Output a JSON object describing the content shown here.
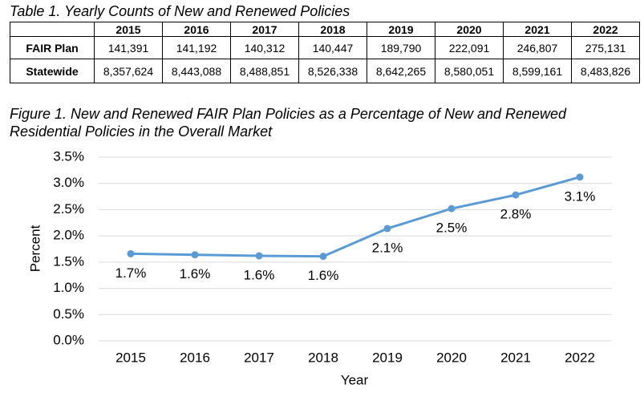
{
  "table": {
    "title": "Table 1. Yearly Counts of New and Renewed Policies",
    "columns": [
      "2015",
      "2016",
      "2017",
      "2018",
      "2019",
      "2020",
      "2021",
      "2022"
    ],
    "rows": [
      [
        "FAIR Plan",
        "141,391",
        "141,192",
        "140,312",
        "140,447",
        "189,790",
        "222,091",
        "246,807",
        "275,131"
      ],
      [
        "Statewide",
        "8,357,624",
        "8,443,088",
        "8,488,851",
        "8,526,338",
        "8,642,265",
        "8,580,051",
        "8,599,161",
        "8,483,826"
      ]
    ]
  },
  "chart_data": {
    "type": "line",
    "title": "Figure 1. New and Renewed FAIR Plan Policies as a Percentage of New and Renewed Residential Policies in the Overall Market",
    "x_label": "Year",
    "y_label": "Percent",
    "categories": [
      "2015",
      "2016",
      "2017",
      "2018",
      "2019",
      "2020",
      "2021",
      "2022"
    ],
    "values": [
      1.66,
      1.64,
      1.62,
      1.61,
      2.14,
      2.52,
      2.78,
      3.12
    ],
    "value_labels": [
      "1.7%",
      "1.6%",
      "1.6%",
      "1.6%",
      "2.1%",
      "2.5%",
      "2.8%",
      "3.1%"
    ],
    "color": "#5b9bd5",
    "ylim": [
      0,
      3.5
    ],
    "yticks": [
      {
        "value": 0,
        "label": "0.0%"
      },
      {
        "value": 0.5,
        "label": "0.5%"
      },
      {
        "value": 1,
        "label": "1.0%"
      },
      {
        "value": 1.5,
        "label": "1.5%"
      },
      {
        "value": 2,
        "label": "2.0%"
      },
      {
        "value": 2.5,
        "label": "2.5%"
      },
      {
        "value": 3,
        "label": "3.0%"
      },
      {
        "value": 3.5,
        "label": "3.5%"
      }
    ],
    "grid": true
  }
}
